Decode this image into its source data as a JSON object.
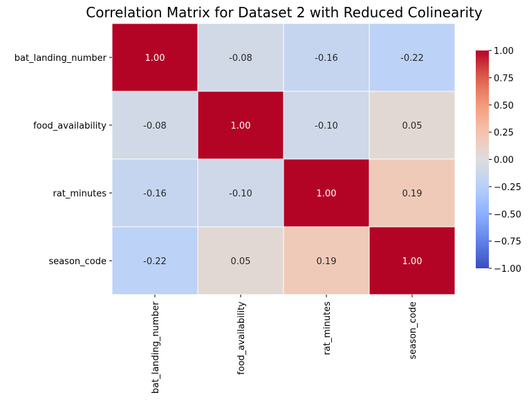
{
  "chart_data": {
    "type": "heatmap",
    "title": "Correlation Matrix for Dataset 2 with Reduced Colinearity",
    "row_labels": [
      "bat_landing_number",
      "food_availability",
      "rat_minutes",
      "season_code"
    ],
    "col_labels": [
      "bat_landing_number",
      "food_availability",
      "rat_minutes",
      "season_code"
    ],
    "values": [
      [
        1.0,
        -0.08,
        -0.16,
        -0.22
      ],
      [
        -0.08,
        1.0,
        -0.1,
        0.05
      ],
      [
        -0.16,
        -0.1,
        1.0,
        0.19
      ],
      [
        -0.22,
        0.05,
        0.19,
        1.0
      ]
    ],
    "cell_labels": [
      [
        "1.00",
        "-0.08",
        "-0.16",
        "-0.22"
      ],
      [
        "-0.08",
        "1.00",
        "-0.10",
        "0.05"
      ],
      [
        "-0.16",
        "-0.10",
        "1.00",
        "0.19"
      ],
      [
        "-0.22",
        "0.05",
        "0.19",
        "1.00"
      ]
    ],
    "colormap": "coolwarm",
    "vmin": -1.0,
    "vmax": 1.0,
    "colorbar_ticks": [
      1.0,
      0.75,
      0.5,
      0.25,
      0.0,
      -0.25,
      -0.5,
      -0.75,
      -1.0
    ],
    "colorbar_tick_labels": [
      "1.00",
      "0.75",
      "0.50",
      "0.25",
      "0.00",
      "−0.25",
      "−0.50",
      "−0.75",
      "−1.00"
    ],
    "legend": "colorbar-right",
    "grid": false,
    "cell_border_color": "#ffffff"
  }
}
